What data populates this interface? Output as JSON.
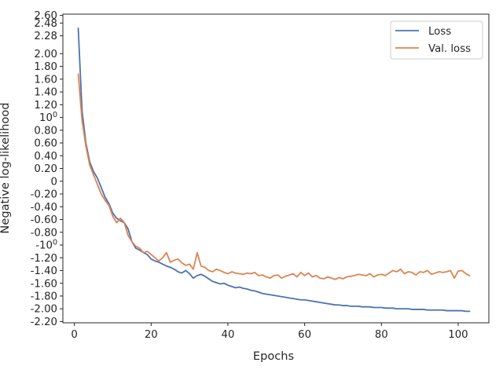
{
  "chart_data": {
    "type": "line",
    "xlabel": "Epochs",
    "ylabel": "Negative log-likelihood",
    "xlim": [
      -3,
      108
    ],
    "ylim": [
      -2.22,
      2.62
    ],
    "x_ticks": [
      {
        "value": 0,
        "label": "0"
      },
      {
        "value": 20,
        "label": "20"
      },
      {
        "value": 40,
        "label": "40"
      },
      {
        "value": 60,
        "label": "60"
      },
      {
        "value": 80,
        "label": "80"
      },
      {
        "value": 100,
        "label": "100"
      }
    ],
    "y_ticks": [
      {
        "value": 2.6,
        "label": "2.60"
      },
      {
        "value": 2.48,
        "label": "2.48"
      },
      {
        "value": 2.28,
        "label": "2.28"
      },
      {
        "value": 2.0,
        "label": "2.00"
      },
      {
        "value": 1.8,
        "label": "1.80"
      },
      {
        "value": 1.6,
        "label": "1.60"
      },
      {
        "value": 1.4,
        "label": "1.40"
      },
      {
        "value": 1.2,
        "label": "1.20"
      },
      {
        "value": 1.0,
        "label": "10",
        "sup": "0"
      },
      {
        "value": 0.8,
        "label": "0.80"
      },
      {
        "value": 0.6,
        "label": "0.60"
      },
      {
        "value": 0.4,
        "label": "0.40"
      },
      {
        "value": 0.2,
        "label": "0.20"
      },
      {
        "value": 0.0,
        "label": "0"
      },
      {
        "value": -0.2,
        "label": "-0.20"
      },
      {
        "value": -0.4,
        "label": "-0.40"
      },
      {
        "value": -0.6,
        "label": "-0.60"
      },
      {
        "value": -0.8,
        "label": "-0.80"
      },
      {
        "value": -1.0,
        "label": "-10",
        "sup": "0"
      },
      {
        "value": -1.2,
        "label": "-1.20"
      },
      {
        "value": -1.4,
        "label": "-1.40"
      },
      {
        "value": -1.6,
        "label": "-1.60"
      },
      {
        "value": -1.8,
        "label": "-1.80"
      },
      {
        "value": -2.0,
        "label": "-2.00"
      },
      {
        "value": -2.2,
        "label": "-2.20"
      }
    ],
    "grid": false,
    "legend_position": "top-right",
    "series": [
      {
        "name": "Loss",
        "color": "#4c72b0",
        "x": [
          1,
          2,
          3,
          4,
          5,
          6,
          7,
          8,
          9,
          10,
          11,
          12,
          13,
          14,
          15,
          16,
          17,
          18,
          19,
          20,
          21,
          22,
          23,
          24,
          25,
          26,
          27,
          28,
          29,
          30,
          31,
          32,
          33,
          34,
          35,
          36,
          37,
          38,
          39,
          40,
          41,
          42,
          43,
          44,
          45,
          46,
          47,
          48,
          49,
          50,
          51,
          52,
          53,
          54,
          55,
          56,
          57,
          58,
          59,
          60,
          61,
          62,
          63,
          64,
          65,
          66,
          67,
          68,
          69,
          70,
          71,
          72,
          73,
          74,
          75,
          76,
          77,
          78,
          79,
          80,
          81,
          82,
          83,
          84,
          85,
          86,
          87,
          88,
          89,
          90,
          91,
          92,
          93,
          94,
          95,
          96,
          97,
          98,
          99,
          100,
          101,
          102,
          103
        ],
        "values": [
          2.4,
          1.1,
          0.6,
          0.3,
          0.15,
          0.05,
          -0.1,
          -0.25,
          -0.35,
          -0.5,
          -0.58,
          -0.62,
          -0.65,
          -0.75,
          -0.95,
          -1.05,
          -1.08,
          -1.12,
          -1.15,
          -1.22,
          -1.25,
          -1.27,
          -1.3,
          -1.33,
          -1.35,
          -1.38,
          -1.42,
          -1.44,
          -1.4,
          -1.45,
          -1.52,
          -1.48,
          -1.46,
          -1.49,
          -1.53,
          -1.57,
          -1.59,
          -1.61,
          -1.6,
          -1.63,
          -1.65,
          -1.67,
          -1.66,
          -1.68,
          -1.69,
          -1.71,
          -1.72,
          -1.74,
          -1.76,
          -1.77,
          -1.78,
          -1.79,
          -1.8,
          -1.81,
          -1.82,
          -1.83,
          -1.84,
          -1.85,
          -1.86,
          -1.86,
          -1.87,
          -1.88,
          -1.89,
          -1.9,
          -1.91,
          -1.92,
          -1.93,
          -1.94,
          -1.94,
          -1.95,
          -1.95,
          -1.96,
          -1.96,
          -1.96,
          -1.97,
          -1.97,
          -1.97,
          -1.98,
          -1.98,
          -1.98,
          -1.99,
          -1.99,
          -1.99,
          -2.0,
          -2.0,
          -2.0,
          -2.0,
          -2.01,
          -2.01,
          -2.01,
          -2.01,
          -2.02,
          -2.02,
          -2.02,
          -2.02,
          -2.02,
          -2.03,
          -2.03,
          -2.03,
          -2.03,
          -2.03,
          -2.04,
          -2.04
        ]
      },
      {
        "name": "Val. loss",
        "color": "#dd8452",
        "x": [
          1,
          2,
          3,
          4,
          5,
          6,
          7,
          8,
          9,
          10,
          11,
          12,
          13,
          14,
          15,
          16,
          17,
          18,
          19,
          20,
          21,
          22,
          23,
          24,
          25,
          26,
          27,
          28,
          29,
          30,
          31,
          32,
          33,
          34,
          35,
          36,
          37,
          38,
          39,
          40,
          41,
          42,
          43,
          44,
          45,
          46,
          47,
          48,
          49,
          50,
          51,
          52,
          53,
          54,
          55,
          56,
          57,
          58,
          59,
          60,
          61,
          62,
          63,
          64,
          65,
          66,
          67,
          68,
          69,
          70,
          71,
          72,
          73,
          74,
          75,
          76,
          77,
          78,
          79,
          80,
          81,
          82,
          83,
          84,
          85,
          86,
          87,
          88,
          89,
          90,
          91,
          92,
          93,
          94,
          95,
          96,
          97,
          98,
          99,
          100,
          101,
          102,
          103
        ],
        "values": [
          1.68,
          0.95,
          0.55,
          0.25,
          0.1,
          -0.05,
          -0.2,
          -0.3,
          -0.38,
          -0.55,
          -0.65,
          -0.58,
          -0.65,
          -0.85,
          -0.95,
          -1.02,
          -1.05,
          -1.12,
          -1.1,
          -1.15,
          -1.2,
          -1.25,
          -1.2,
          -1.12,
          -1.27,
          -1.24,
          -1.22,
          -1.28,
          -1.32,
          -1.3,
          -1.38,
          -1.12,
          -1.33,
          -1.35,
          -1.4,
          -1.42,
          -1.38,
          -1.4,
          -1.43,
          -1.45,
          -1.42,
          -1.44,
          -1.45,
          -1.46,
          -1.44,
          -1.45,
          -1.43,
          -1.48,
          -1.47,
          -1.5,
          -1.52,
          -1.48,
          -1.47,
          -1.52,
          -1.49,
          -1.47,
          -1.45,
          -1.5,
          -1.43,
          -1.48,
          -1.44,
          -1.5,
          -1.48,
          -1.52,
          -1.53,
          -1.5,
          -1.52,
          -1.54,
          -1.51,
          -1.53,
          -1.5,
          -1.49,
          -1.48,
          -1.46,
          -1.47,
          -1.48,
          -1.45,
          -1.5,
          -1.47,
          -1.46,
          -1.48,
          -1.44,
          -1.4,
          -1.42,
          -1.38,
          -1.45,
          -1.42,
          -1.43,
          -1.47,
          -1.42,
          -1.43,
          -1.4,
          -1.46,
          -1.44,
          -1.42,
          -1.43,
          -1.42,
          -1.4,
          -1.52,
          -1.41,
          -1.4,
          -1.45,
          -1.48
        ]
      }
    ]
  }
}
